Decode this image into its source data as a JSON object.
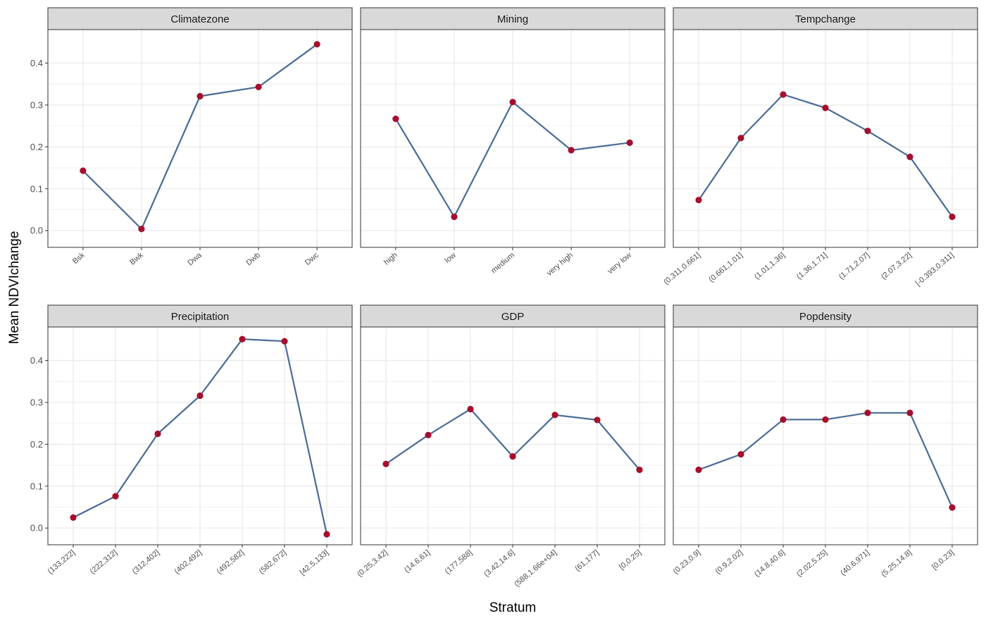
{
  "chart_data": {
    "type": "line",
    "xlabel": "Stratum",
    "ylabel": "Mean NDVIchange",
    "ylim": [
      -0.04,
      0.48
    ],
    "yticks": [
      0.0,
      0.1,
      0.2,
      0.3,
      0.4
    ],
    "ytick_labels": [
      "0.0",
      "0.1",
      "0.2",
      "0.3",
      "0.4"
    ],
    "grid": true,
    "colors": {
      "line": "#4a6a96",
      "point": "#a50f2d",
      "strip_fill": "#d9d9d9",
      "grid": "#ebebeb",
      "border": "#333333"
    },
    "facets": [
      {
        "title": "Climatezone",
        "categories": [
          "Bsk",
          "Bwk",
          "Dwa",
          "Dwb",
          "Dwc"
        ],
        "values": [
          0.143,
          0.004,
          0.321,
          0.343,
          0.445
        ]
      },
      {
        "title": "Mining",
        "categories": [
          "high",
          "low",
          "medium",
          "very high",
          "very low"
        ],
        "values": [
          0.267,
          0.033,
          0.307,
          0.192,
          0.21
        ]
      },
      {
        "title": "Tempchange",
        "categories": [
          "(0.311,0.661]",
          "(0.661,1.01]",
          "(1.01,1.36]",
          "(1.36,1.71]",
          "(1.71,2.07]",
          "(2.07,3.22]",
          "[-0.393,0.311]"
        ],
        "values": [
          0.073,
          0.221,
          0.325,
          0.293,
          0.238,
          0.176,
          0.033
        ]
      },
      {
        "title": "Precipitation",
        "categories": [
          "(133,222]",
          "(222,312]",
          "(312,402]",
          "(402,492]",
          "(492,582]",
          "(582,672]",
          "[42.5,133]"
        ],
        "values": [
          0.025,
          0.076,
          0.225,
          0.316,
          0.451,
          0.446,
          -0.015
        ]
      },
      {
        "title": "GDP",
        "categories": [
          "(0.25,3.42]",
          "(14.6,61]",
          "(177,588]",
          "(3.42,14.6]",
          "(588,1.66e+04]",
          "(61,177]",
          "[0,0.25]"
        ],
        "values": [
          0.153,
          0.222,
          0.284,
          0.171,
          0.27,
          0.258,
          0.139
        ]
      },
      {
        "title": "Popdensity",
        "categories": [
          "(0.23,0.9]",
          "(0.9,2.02]",
          "(14.8,40.6]",
          "(2.02,5.25]",
          "(40.6,971]",
          "(5.25,14.8]",
          "[0,0.23]"
        ],
        "values": [
          0.139,
          0.176,
          0.259,
          0.259,
          0.275,
          0.275,
          0.049
        ]
      }
    ]
  }
}
